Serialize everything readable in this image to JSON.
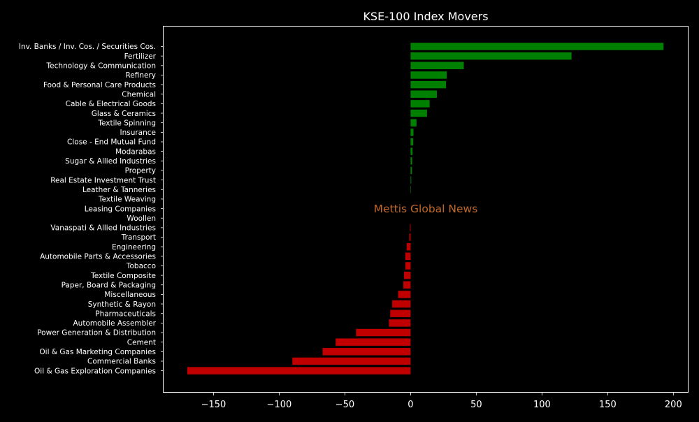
{
  "chart_data": {
    "type": "bar",
    "orientation": "horizontal",
    "title": "KSE-100 Index Movers",
    "watermark": "Mettis Global News",
    "xlabel": "",
    "ylabel": "",
    "xlim": [
      -188,
      211
    ],
    "xticks": [
      -150,
      -100,
      -50,
      0,
      50,
      100,
      150,
      200
    ],
    "xtick_labels": [
      "−150",
      "−100",
      "−50",
      "0",
      "50",
      "100",
      "150",
      "200"
    ],
    "grid": false,
    "legend": "none",
    "colors": {
      "positive": "#008000",
      "negative": "#c00000",
      "background": "#000000",
      "text": "#ffffff",
      "watermark": "#c0672b"
    },
    "categories": [
      "Inv. Banks / Inv. Cos. / Securities Cos.",
      "Fertilizer",
      "Technology & Communication",
      "Refinery",
      "Food & Personal Care Products",
      "Chemical",
      "Cable & Electrical Goods",
      "Glass & Ceramics",
      "Textile Spinning",
      "Insurance",
      "Close - End Mutual Fund",
      "Modarabas",
      "Sugar & Allied Industries",
      "Property",
      "Real Estate Investment Trust",
      "Leather & Tanneries",
      "Textile Weaving",
      "Leasing Companies",
      "Woollen",
      "Vanaspati & Allied Industries",
      "Transport",
      "Engineering",
      "Automobile Parts & Accessories",
      "Tobacco",
      "Textile Composite",
      "Paper, Board & Packaging",
      "Miscellaneous",
      "Synthetic & Rayon",
      "Pharmaceuticals",
      "Automobile Assembler",
      "Power Generation & Distribution",
      "Cement",
      "Oil & Gas Marketing Companies",
      "Commercial Banks",
      "Oil & Gas Exploration Companies"
    ],
    "values": [
      192.5,
      122.5,
      40.5,
      27.5,
      27,
      20,
      14.5,
      12.5,
      4.5,
      2.2,
      2,
      1.5,
      1.2,
      1,
      0.5,
      0.3,
      0,
      0,
      0,
      -0.5,
      -1,
      -3,
      -4,
      -4,
      -5,
      -5.5,
      -9.5,
      -14,
      -15.5,
      -16.5,
      -41.5,
      -57,
      -67,
      -90,
      -170
    ]
  }
}
